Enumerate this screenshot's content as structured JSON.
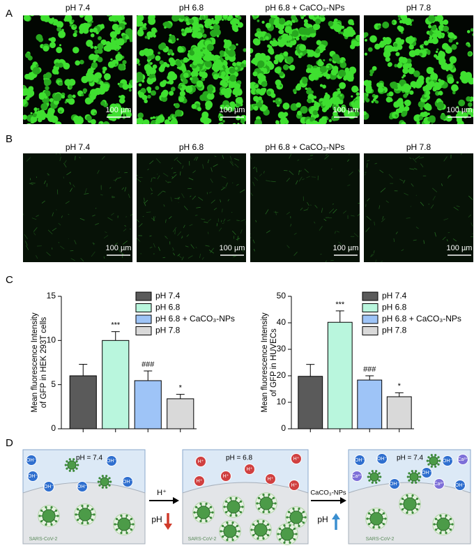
{
  "panel_labels": [
    "A",
    "B",
    "C",
    "D"
  ],
  "panel_a": {
    "images": [
      {
        "title": "pH 7.4",
        "scale_bar": "100 µm"
      },
      {
        "title": "pH 6.8",
        "scale_bar": "100 µm"
      },
      {
        "title": "pH 6.8 + CaCO₃-NPs",
        "scale_bar": "100 µm"
      },
      {
        "title": "pH 7.8",
        "scale_bar": "100 µm"
      }
    ]
  },
  "panel_b": {
    "images": [
      {
        "title": "pH 7.4",
        "scale_bar": "100 µm"
      },
      {
        "title": "pH 6.8",
        "scale_bar": "100 µm"
      },
      {
        "title": "pH 6.8 + CaCO₃-NPs",
        "scale_bar": "100 µm"
      },
      {
        "title": "pH 7.8",
        "scale_bar": "100 µm"
      }
    ]
  },
  "chart_data": [
    {
      "type": "bar",
      "y_label": [
        "Mean fluorescence Intensity",
        "of GFP in HEK 293T cells"
      ],
      "categories": [
        "pH 7.4",
        "pH 6.8",
        "pH 6.8 + CaCO₃-NPs",
        "pH 7.8"
      ],
      "values": [
        6.0,
        10.0,
        5.45,
        3.4
      ],
      "errors": [
        1.3,
        1.0,
        1.1,
        0.5
      ],
      "colors": [
        "#5a5a5a",
        "#b9f6dd",
        "#9ec4f7",
        "#d9d9d9"
      ],
      "annotations": [
        null,
        "***",
        "###",
        "*"
      ],
      "ylim": [
        0,
        15
      ],
      "yticks": [
        0,
        5,
        10,
        15
      ],
      "legend": "top-right"
    },
    {
      "type": "bar",
      "y_label": [
        "Mean fluorescence Intensity",
        "of GFP in HUVECs"
      ],
      "categories": [
        "pH 7.4",
        "pH 6.8",
        "pH 6.8 + CaCO₃-NPs",
        "pH 7.8"
      ],
      "values": [
        19.8,
        40.2,
        18.4,
        12.1
      ],
      "errors": [
        4.5,
        4.3,
        1.6,
        1.5
      ],
      "colors": [
        "#5a5a5a",
        "#b9f6dd",
        "#9ec4f7",
        "#d9d9d9"
      ],
      "annotations": [
        null,
        "***",
        "###",
        "*"
      ],
      "ylim": [
        0,
        50
      ],
      "yticks": [
        0,
        10,
        20,
        30,
        40,
        50
      ],
      "legend": "top-right"
    }
  ],
  "panel_d": {
    "boxes": [
      {
        "ph": "pH = 7.4",
        "ions": [
          "OH⁻",
          "OH⁻",
          "OH⁻",
          "OH⁻",
          "OH⁻",
          "OH⁻"
        ],
        "cell_label": "SARS-CoV-2"
      },
      {
        "ph": "pH = 6.8",
        "ions": [
          "H⁺",
          "H⁺",
          "H⁺",
          "H⁺",
          "H⁺",
          "H⁺",
          "H⁺"
        ],
        "cell_label": "SARS-CoV-2"
      },
      {
        "ph": "pH = 7.4",
        "ions": [
          "OH⁻",
          "Ca²⁺",
          "OH⁻",
          "OH⁻",
          "OH⁻",
          "Ca²⁺",
          "OH⁻",
          "Ca²⁺",
          "OH⁻"
        ],
        "cell_label": "SARS-CoV-2"
      }
    ],
    "arrows": [
      {
        "label": "H⁺",
        "ph": "pH"
      },
      {
        "label": "CaCO₃-NPs",
        "ph": "pH"
      }
    ]
  }
}
